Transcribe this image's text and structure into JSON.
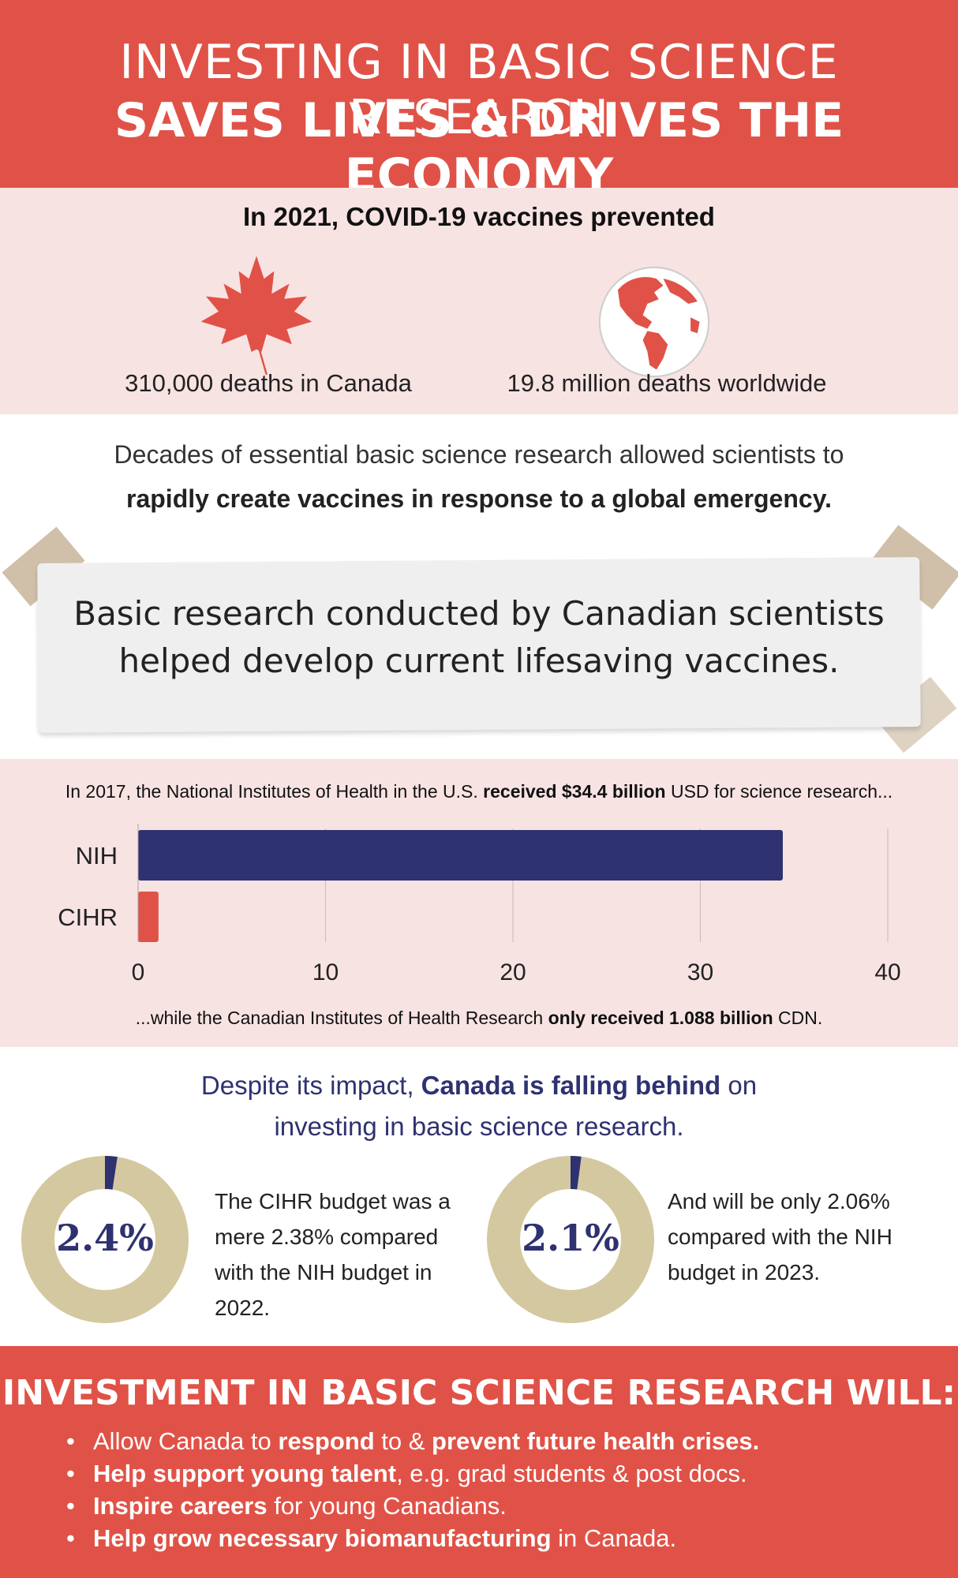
{
  "header": {
    "title_line1": "INVESTING IN BASIC SCIENCE RESEARCH",
    "title_line2": "SAVES LIVES & DRIVES THE ECONOMY"
  },
  "covid": {
    "heading": "In 2021, COVID-19 vaccines prevented",
    "canada_stat": "310,000 deaths in Canada",
    "world_stat": "19.8 million deaths worldwide",
    "canada_icon": "maple-leaf-icon",
    "world_icon": "globe-icon"
  },
  "decades": {
    "line1": "Decades of essential basic science research allowed scientists to",
    "line2": "rapidly create vaccines in response to a global emergency."
  },
  "note": {
    "line1": "Basic research conducted by Canadian scientists",
    "line2": "helped develop current lifesaving vaccines."
  },
  "chart_intro": {
    "pre": "In 2017, the National Institutes of Health in the U.S. ",
    "bold": "received $34.4 billion",
    "post": " USD for science research..."
  },
  "chart_outro": {
    "pre": "...while the Canadian Institutes of Health Research ",
    "bold": "only received 1.088 billion",
    "post": " CDN."
  },
  "chart_data": {
    "type": "bar",
    "orientation": "horizontal",
    "categories": [
      "NIH",
      "CIHR"
    ],
    "values": [
      34.4,
      1.088
    ],
    "colors": [
      "#2e3270",
      "#e05247"
    ],
    "xlim": [
      0,
      40
    ],
    "xticks": [
      "0",
      "10",
      "20",
      "30",
      "40"
    ],
    "grid": true
  },
  "behind": {
    "pre": "Despite its impact, ",
    "bold": "Canada is falling behind",
    "post": " on",
    "line2": "investing in basic science research."
  },
  "donuts": [
    {
      "label": "2.4%",
      "percent": 2.38,
      "desc": "The CIHR budget was a mere 2.38% compared with the NIH budget in 2022."
    },
    {
      "label": "2.1%",
      "percent": 2.06,
      "desc": "And will be only 2.06% compared with the NIH budget in 2023."
    }
  ],
  "donut_colors": {
    "track": "#d4c8a0",
    "fill": "#2e3270"
  },
  "bottom": {
    "title": "INVESTMENT IN BASIC SCIENCE RESEARCH WILL:",
    "bullets": [
      {
        "p1": "Allow Canada to ",
        "b1": "respond",
        "p2": " to & ",
        "b2": "prevent future health crises.",
        "p3": ""
      },
      {
        "p1": "",
        "b1": "Help support young talent",
        "p2": ", e.g. grad students & post docs.",
        "b2": "",
        "p3": ""
      },
      {
        "p1": "",
        "b1": "Inspire careers",
        "p2": " for young Canadians.",
        "b2": "",
        "p3": ""
      },
      {
        "p1": "",
        "b1": "Help grow necessary biomanufacturing",
        "p2": " in Canada.",
        "b2": "",
        "p3": ""
      }
    ]
  },
  "colors": {
    "red": "#e05247",
    "pink": "#f8e3e3",
    "navy": "#2e3270",
    "tan": "#d4c8a0"
  }
}
